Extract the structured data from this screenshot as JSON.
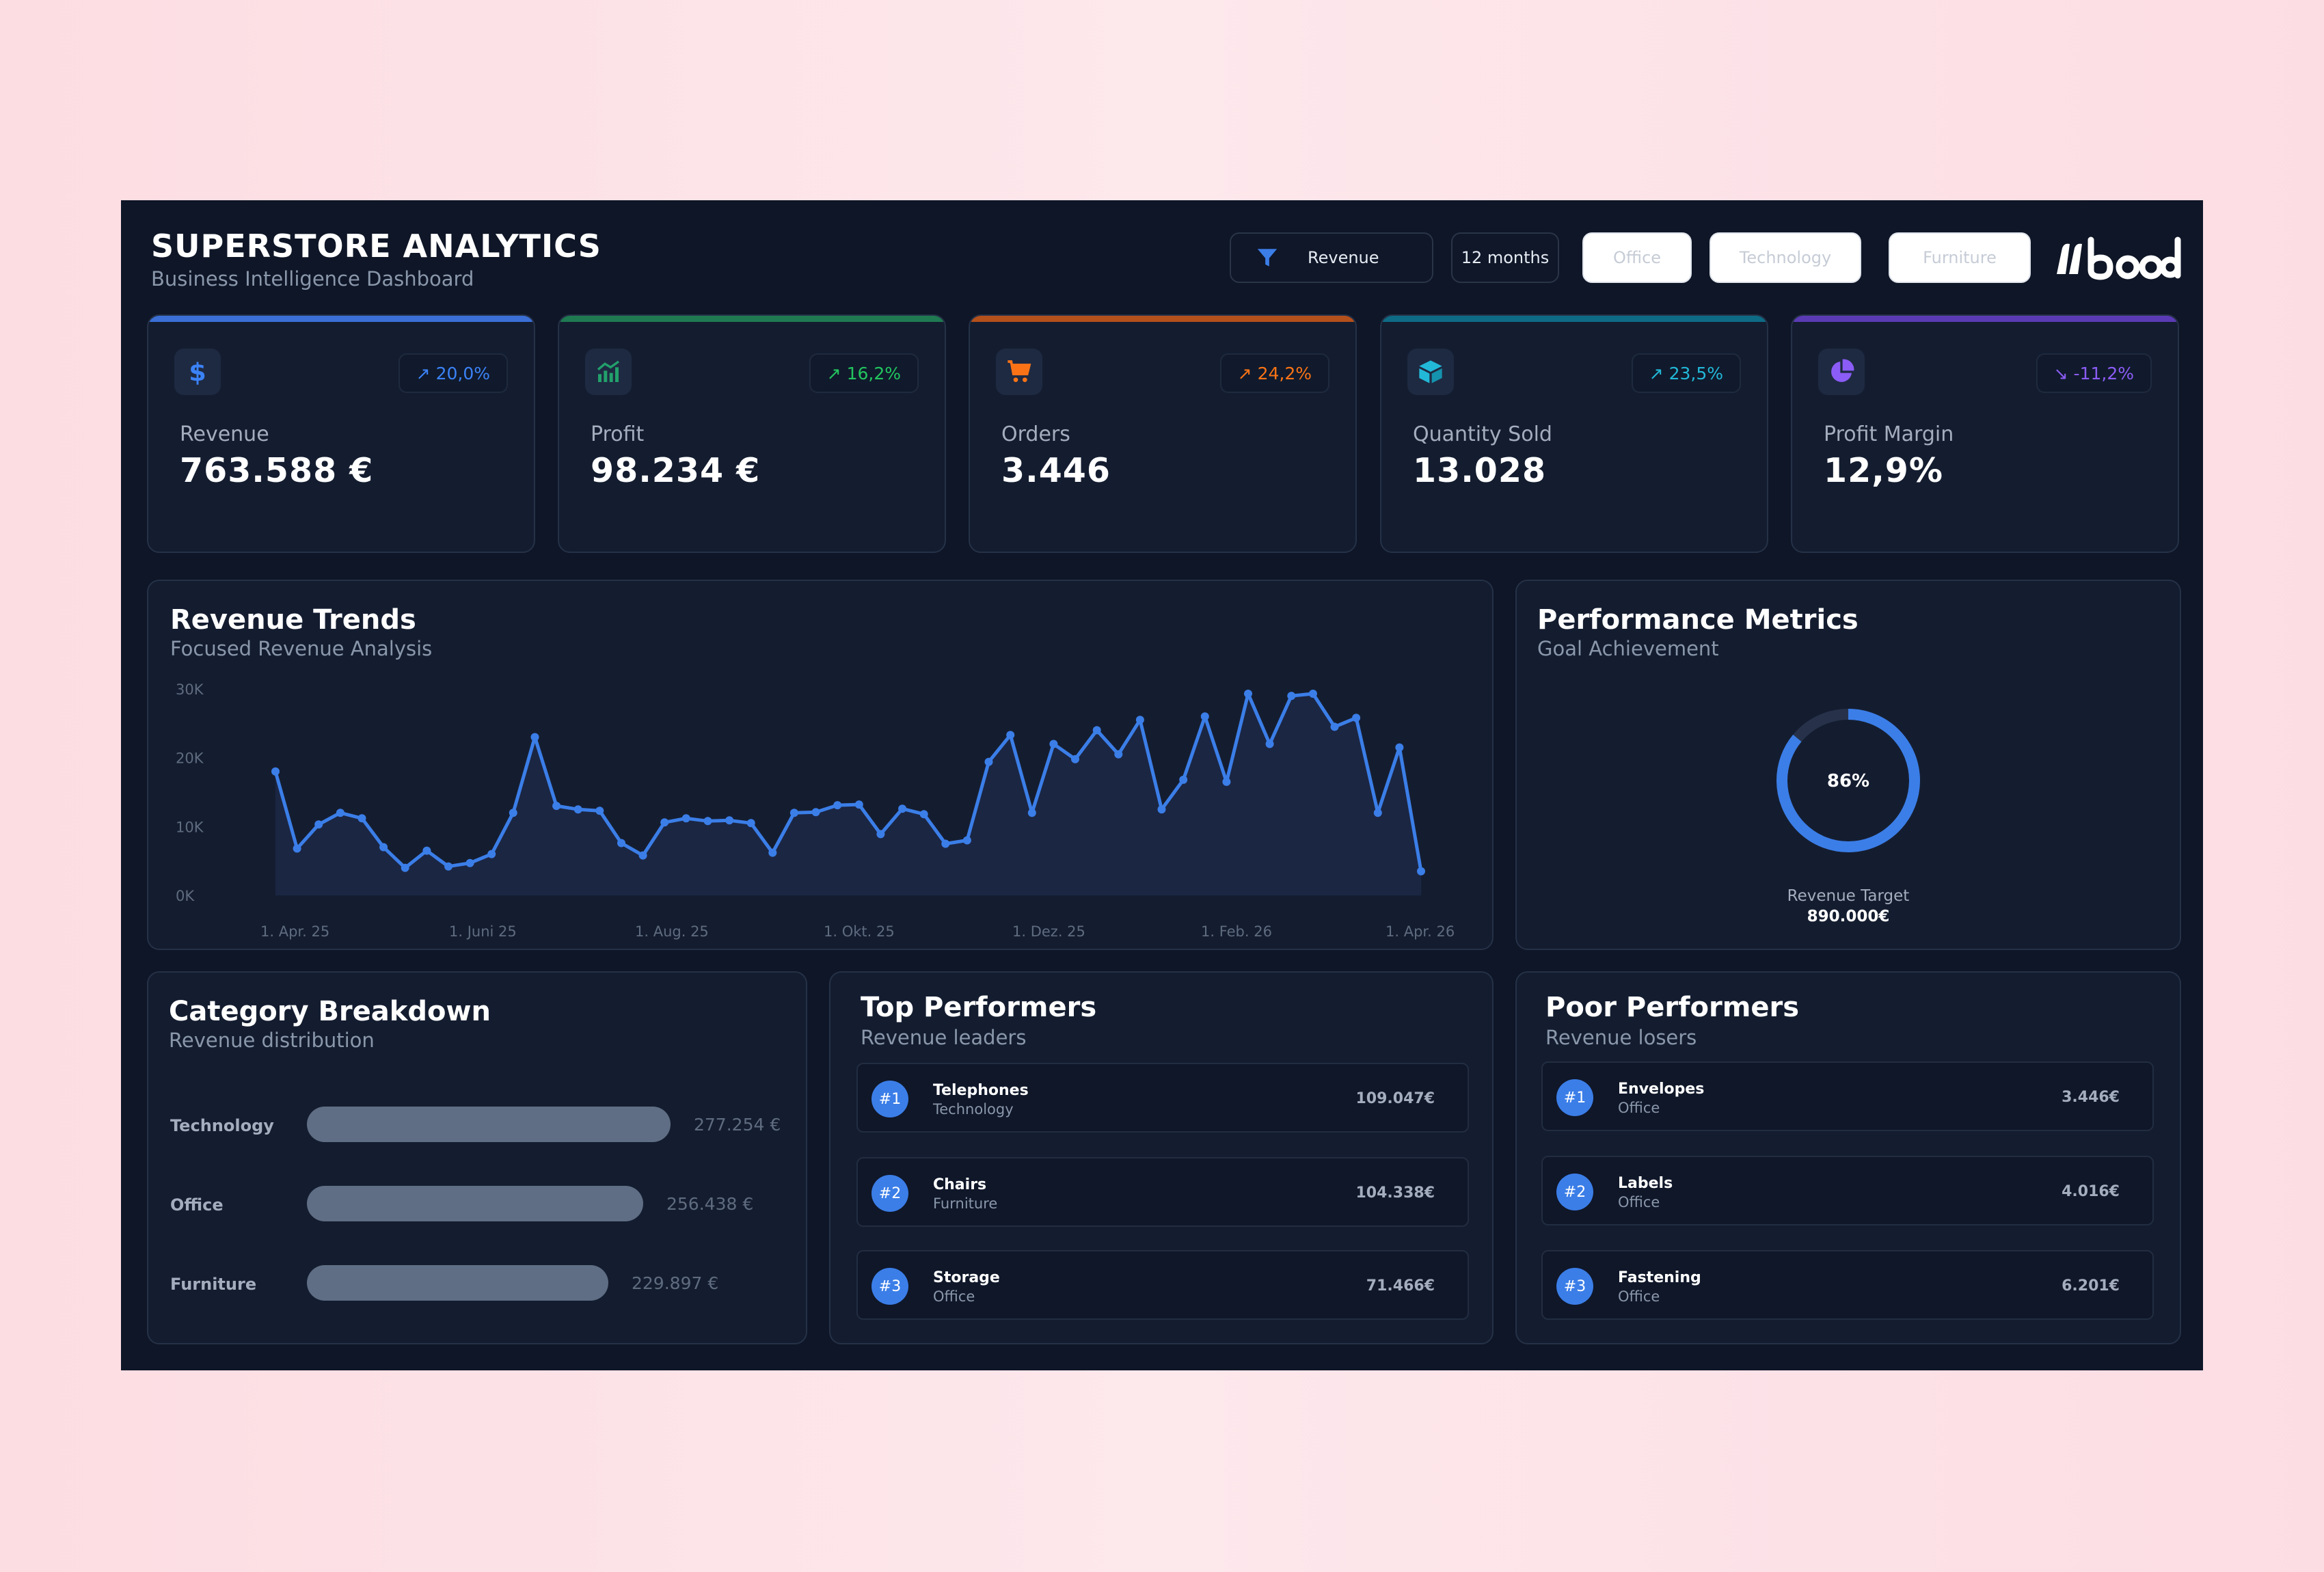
{
  "header": {
    "title": "SUPERSTORE ANALYTICS",
    "subtitle": "Business Intelligence Dashboard",
    "filter_label": "Revenue",
    "period": "12 months",
    "category_buttons": [
      "Office",
      "Technology",
      "Furniture"
    ],
    "brand": "bood"
  },
  "kpis": [
    {
      "label": "Revenue",
      "value": "763.588 €",
      "change": "↗ 20,0%",
      "icon": "dollar-icon",
      "accent": "#3b82f6",
      "change_color": "#3b82f6"
    },
    {
      "label": "Profit",
      "value": "98.234 €",
      "change": "↗ 16,2%",
      "icon": "chart-up-icon",
      "accent": "#1f8a5b",
      "change_color": "#22c55e"
    },
    {
      "label": "Orders",
      "value": "3.446",
      "change": "↗ 24,2%",
      "icon": "cart-icon",
      "accent": "#c2521d",
      "change_color": "#f97316"
    },
    {
      "label": "Quantity Sold",
      "value": "13.028",
      "change": "↗ 23,5%",
      "icon": "box-icon",
      "accent": "#0e7490",
      "change_color": "#22b8d8"
    },
    {
      "label": "Profit Margin",
      "value": "12,9%",
      "change": "↘ -11,2%",
      "icon": "pie-icon",
      "accent": "#6d3fc7",
      "change_color": "#8b5cf6"
    }
  ],
  "trends": {
    "title": "Revenue Trends",
    "subtitle": "Focused Revenue Analysis"
  },
  "chart_data": {
    "type": "area",
    "x_tick_labels": [
      "1. Apr. 25",
      "1. Juni 25",
      "1. Aug. 25",
      "1. Okt. 25",
      "1. Dez. 25",
      "1. Feb. 26",
      "1. Apr. 26"
    ],
    "y_tick_labels": [
      "30K",
      "20K",
      "10K",
      "0K"
    ],
    "ylim": [
      0,
      30000
    ],
    "values": [
      18000,
      6800,
      10300,
      12000,
      11200,
      7000,
      4000,
      6500,
      4200,
      4700,
      6000,
      12000,
      23000,
      13000,
      12500,
      12300,
      7600,
      5800,
      10600,
      11200,
      10800,
      10900,
      10500,
      6200,
      12000,
      12100,
      13100,
      13200,
      8900,
      12600,
      11800,
      7500,
      8000,
      19400,
      23300,
      12000,
      22000,
      19800,
      24000,
      20500,
      25500,
      12500,
      16800,
      26000,
      16500,
      29300,
      22000,
      29000,
      29300,
      24500,
      25800,
      12000,
      21500,
      3500
    ],
    "grid": false,
    "color": "#3b7ee8"
  },
  "performance": {
    "title": "Performance Metrics",
    "subtitle": "Goal Achievement",
    "percent": 86,
    "percent_label": "86%",
    "target_label": "Revenue Target",
    "target_value": "890.000€"
  },
  "categories": {
    "title": "Category Breakdown",
    "subtitle": "Revenue distribution",
    "items": [
      {
        "name": "Technology",
        "value": "277.254 €",
        "amount": 277254
      },
      {
        "name": "Office",
        "value": "256.438 €",
        "amount": 256438
      },
      {
        "name": "Furniture",
        "value": "229.897 €",
        "amount": 229897
      }
    ]
  },
  "top": {
    "title": "Top Performers",
    "subtitle": "Revenue leaders",
    "items": [
      {
        "rank": "#1",
        "name": "Telephones",
        "category": "Technology",
        "value": "109.047€"
      },
      {
        "rank": "#2",
        "name": "Chairs",
        "category": "Furniture",
        "value": "104.338€"
      },
      {
        "rank": "#3",
        "name": "Storage",
        "category": "Office",
        "value": "71.466€"
      }
    ]
  },
  "poor": {
    "title": "Poor Performers",
    "subtitle": "Revenue losers",
    "items": [
      {
        "rank": "#1",
        "name": "Envelopes",
        "category": "Office",
        "value": "3.446€"
      },
      {
        "rank": "#2",
        "name": "Labels",
        "category": "Office",
        "value": "4.016€"
      },
      {
        "rank": "#3",
        "name": "Fastening",
        "category": "Office",
        "value": "6.201€"
      }
    ]
  }
}
